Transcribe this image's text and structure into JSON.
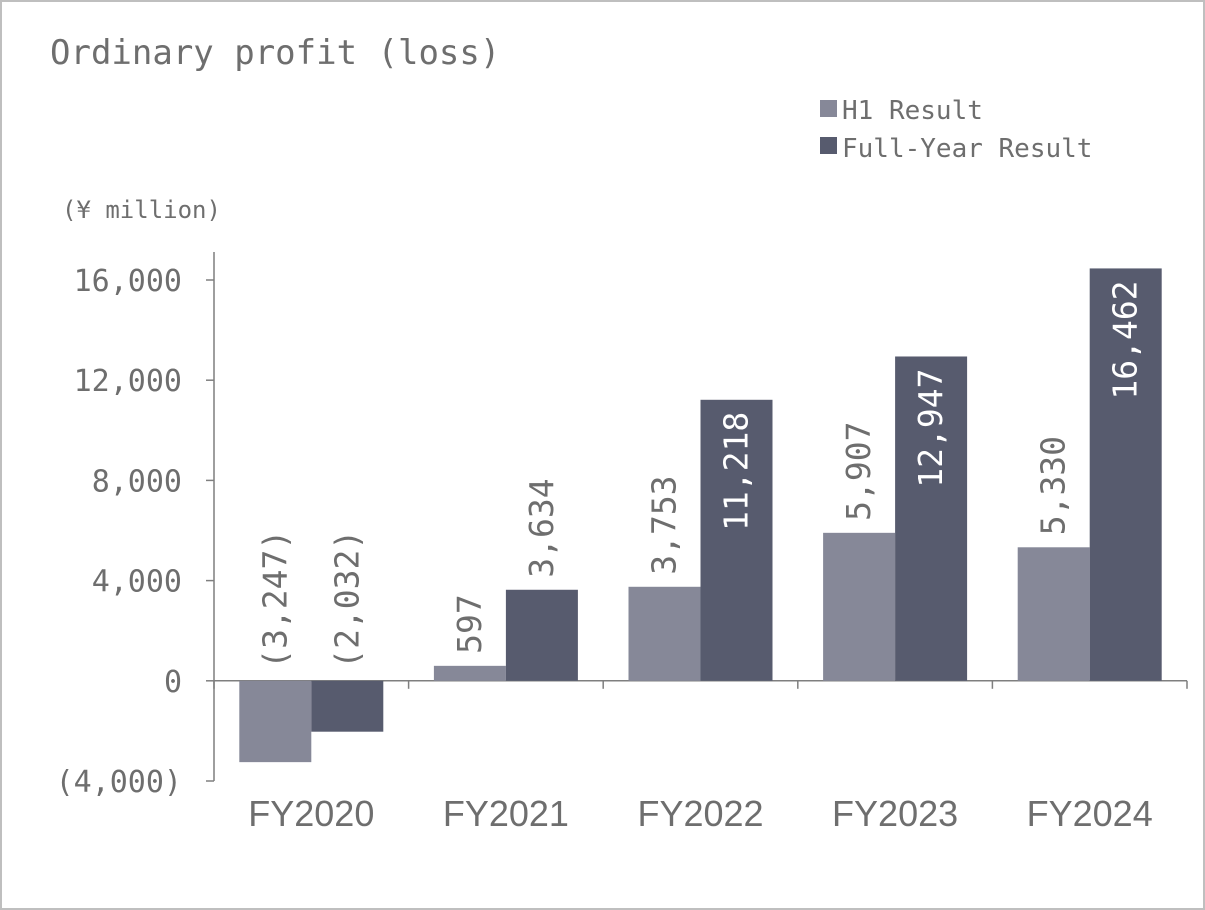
{
  "chart_data": {
    "type": "bar",
    "title": "Ordinary profit (loss)",
    "unit_label": "(¥ million)",
    "categories": [
      "FY2020",
      "FY2021",
      "FY2022",
      "FY2023",
      "FY2024"
    ],
    "series": [
      {
        "name": "H1 Result",
        "color": "#868898",
        "values": [
          -3247,
          597,
          3753,
          5907,
          5330
        ],
        "labels": [
          "(3,247)",
          "597",
          "3,753",
          "5,907",
          "5,330"
        ]
      },
      {
        "name": "Full-Year Result",
        "color": "#575b6e",
        "values": [
          -2032,
          3634,
          11218,
          12947,
          16462
        ],
        "labels": [
          "(2,032)",
          "3,634",
          "11,218",
          "12,947",
          "16,462"
        ]
      }
    ],
    "yticks": [
      -4000,
      0,
      4000,
      8000,
      12000,
      16000
    ],
    "ytick_labels": [
      "(4,000)",
      "0",
      "4,000",
      "8,000",
      "12,000",
      "16,000"
    ],
    "ylim": [
      -4000,
      16000
    ],
    "grid": false,
    "legend_position": "top-right"
  }
}
